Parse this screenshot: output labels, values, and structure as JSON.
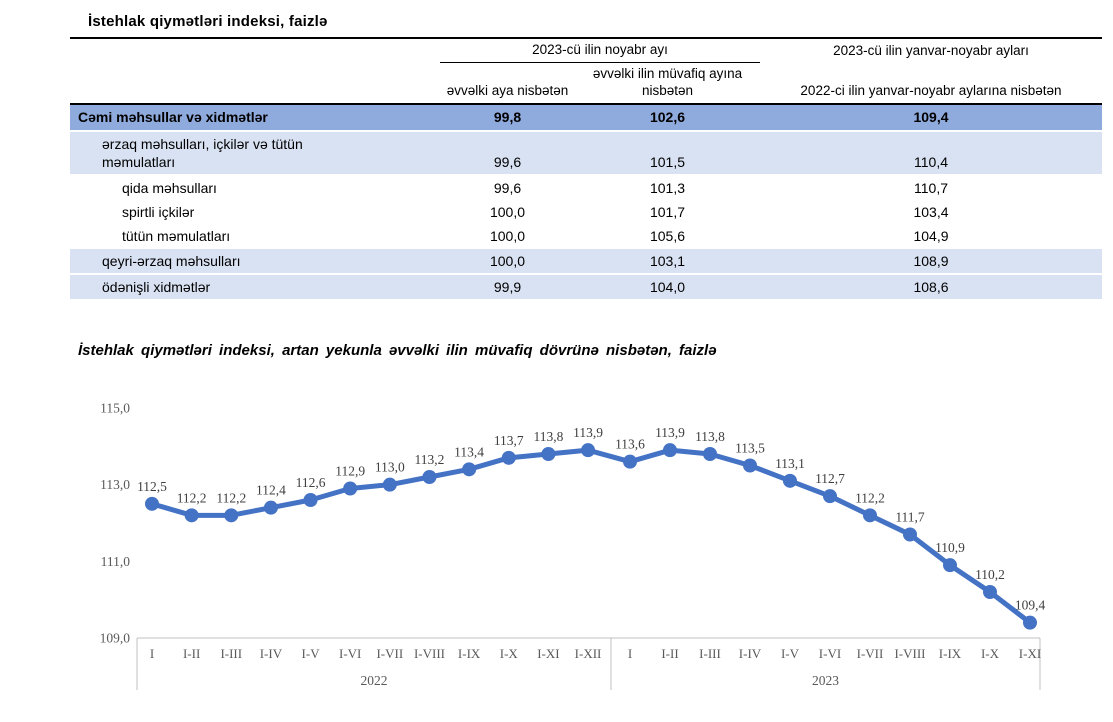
{
  "table": {
    "title": "İstehlak qiymətləri indeksi, faizlə",
    "header": {
      "group_november": "2023-cü ilin noyabr ayı",
      "group_jan_nov": "2023-cü ilin yanvar-noyabr ayları",
      "sub_prev_month": "əvvəlki aya nisbətən",
      "sub_prev_year_month": "əvvəlki ilin müvafiq ayına nisbətən",
      "sub_prev_year_period": "2022-ci ilin yanvar-noyabr aylarına nisbətən"
    },
    "rows": [
      {
        "label_lines": [
          "Cəmi məhsullar və xidmətlər"
        ],
        "level": 0,
        "style": "total",
        "values": [
          "99,8",
          "102,6",
          "109,4"
        ]
      },
      {
        "label_lines": [
          "ərzaq məhsulları, içkilər və tütün",
          "məmulatları"
        ],
        "level": 1,
        "style": "band",
        "values": [
          "99,6",
          "101,5",
          "110,4"
        ]
      },
      {
        "label_lines": [
          "qida məhsulları"
        ],
        "level": 2,
        "style": "plain",
        "values": [
          "99,6",
          "101,3",
          "110,7"
        ]
      },
      {
        "label_lines": [
          "spirtli içkilər"
        ],
        "level": 2,
        "style": "plain",
        "values": [
          "100,0",
          "101,7",
          "103,4"
        ]
      },
      {
        "label_lines": [
          "tütün məmulatları"
        ],
        "level": 2,
        "style": "plain",
        "values": [
          "100,0",
          "105,6",
          "104,9"
        ]
      },
      {
        "label_lines": [
          "qeyri-ərzaq məhsulları"
        ],
        "level": 1,
        "style": "band",
        "values": [
          "100,0",
          "103,1",
          "108,9"
        ]
      },
      {
        "label_lines": [
          "ödənişli xidmətlər"
        ],
        "level": 1,
        "style": "band",
        "values": [
          "99,9",
          "104,0",
          "108,6"
        ]
      }
    ],
    "colors": {
      "total_row_bg": "#8FAADC",
      "band_row_bg": "#D9E2F2"
    }
  },
  "chart_data": {
    "type": "line",
    "title": "İstehlak qiymətləri indeksi, artan yekunla əvvəlki ilin müvafiq dövrünə nisbətən, faizlə",
    "groups": [
      {
        "year": "2022",
        "months": [
          "I",
          "I-II",
          "I-III",
          "I-IV",
          "I-V",
          "I-VI",
          "I-VII",
          "I-VIII",
          "I-IX",
          "I-X",
          "I-XI",
          "I-XII"
        ]
      },
      {
        "year": "2023",
        "months": [
          "I",
          "I-II",
          "I-III",
          "I-IV",
          "I-V",
          "I-VI",
          "I-VII",
          "I-VIII",
          "I-IX",
          "I-X",
          "I-XI"
        ]
      }
    ],
    "values": [
      112.5,
      112.2,
      112.2,
      112.4,
      112.6,
      112.9,
      113.0,
      113.2,
      113.4,
      113.7,
      113.8,
      113.9,
      113.6,
      113.9,
      113.8,
      113.5,
      113.1,
      112.7,
      112.2,
      111.7,
      110.9,
      110.2,
      109.4
    ],
    "point_labels": [
      "112,5",
      "112,2",
      "112,2",
      "112,4",
      "112,6",
      "112,9",
      "113,0",
      "113,2",
      "113,4",
      "113,7",
      "113,8",
      "113,9",
      "113,6",
      "113,9",
      "113,8",
      "113,5",
      "113,1",
      "112,7",
      "112,2",
      "111,7",
      "110,9",
      "110,2",
      "109,4"
    ],
    "yticks": [
      {
        "value": 115.0,
        "label": "115,0"
      },
      {
        "value": 113.0,
        "label": "113,0"
      },
      {
        "value": 111.0,
        "label": "111,0"
      },
      {
        "value": 109.0,
        "label": "109,0"
      }
    ],
    "ylim": [
      109.0,
      115.0
    ],
    "grid": false,
    "legend": "none",
    "line_color": "#4472C4",
    "label_color": "#3F3F3F",
    "axis_text_color": "#595959",
    "axis_line_color": "#C0C0C0"
  }
}
